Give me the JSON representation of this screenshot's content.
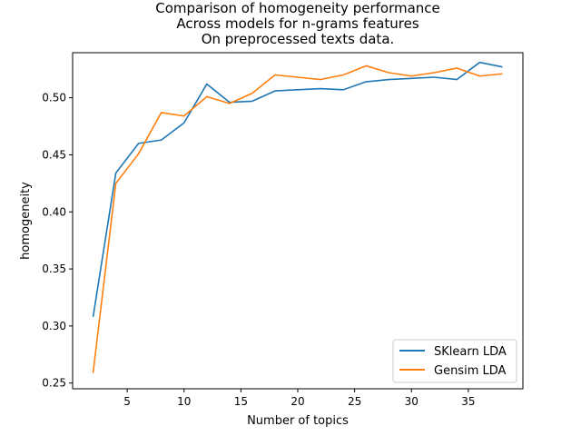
{
  "chart_data": {
    "type": "line",
    "title_lines": [
      "Comparison of homogeneity performance",
      "Across models for n-grams features",
      "On preprocessed texts data."
    ],
    "xlabel": "Number of topics",
    "ylabel": "homogeneity",
    "xlim": [
      0.2,
      39.8
    ],
    "ylim": [
      0.245,
      0.5395
    ],
    "xticks": [
      5,
      10,
      15,
      20,
      25,
      30,
      35
    ],
    "yticks": [
      0.25,
      0.3,
      0.35,
      0.4,
      0.45,
      0.5
    ],
    "ytick_labels": [
      "0.25",
      "0.30",
      "0.35",
      "0.40",
      "0.45",
      "0.50"
    ],
    "grid": false,
    "legend_position": "lower-right",
    "x": [
      2,
      4,
      6,
      8,
      10,
      12,
      14,
      16,
      18,
      20,
      22,
      24,
      26,
      28,
      30,
      32,
      34,
      36,
      38
    ],
    "series": [
      {
        "name": "SKlearn LDA",
        "color": "#1f77b4",
        "values": [
          0.308,
          0.434,
          0.46,
          0.463,
          0.478,
          0.512,
          0.496,
          0.497,
          0.506,
          0.507,
          0.508,
          0.507,
          0.514,
          0.516,
          0.517,
          0.518,
          0.516,
          0.531,
          0.527
        ]
      },
      {
        "name": "Gensim LDA",
        "color": "#ff7f0e",
        "values": [
          0.259,
          0.425,
          0.451,
          0.487,
          0.484,
          0.501,
          0.495,
          0.504,
          0.52,
          0.518,
          0.516,
          0.52,
          0.528,
          0.522,
          0.519,
          0.522,
          0.526,
          0.519,
          0.521
        ]
      }
    ]
  }
}
